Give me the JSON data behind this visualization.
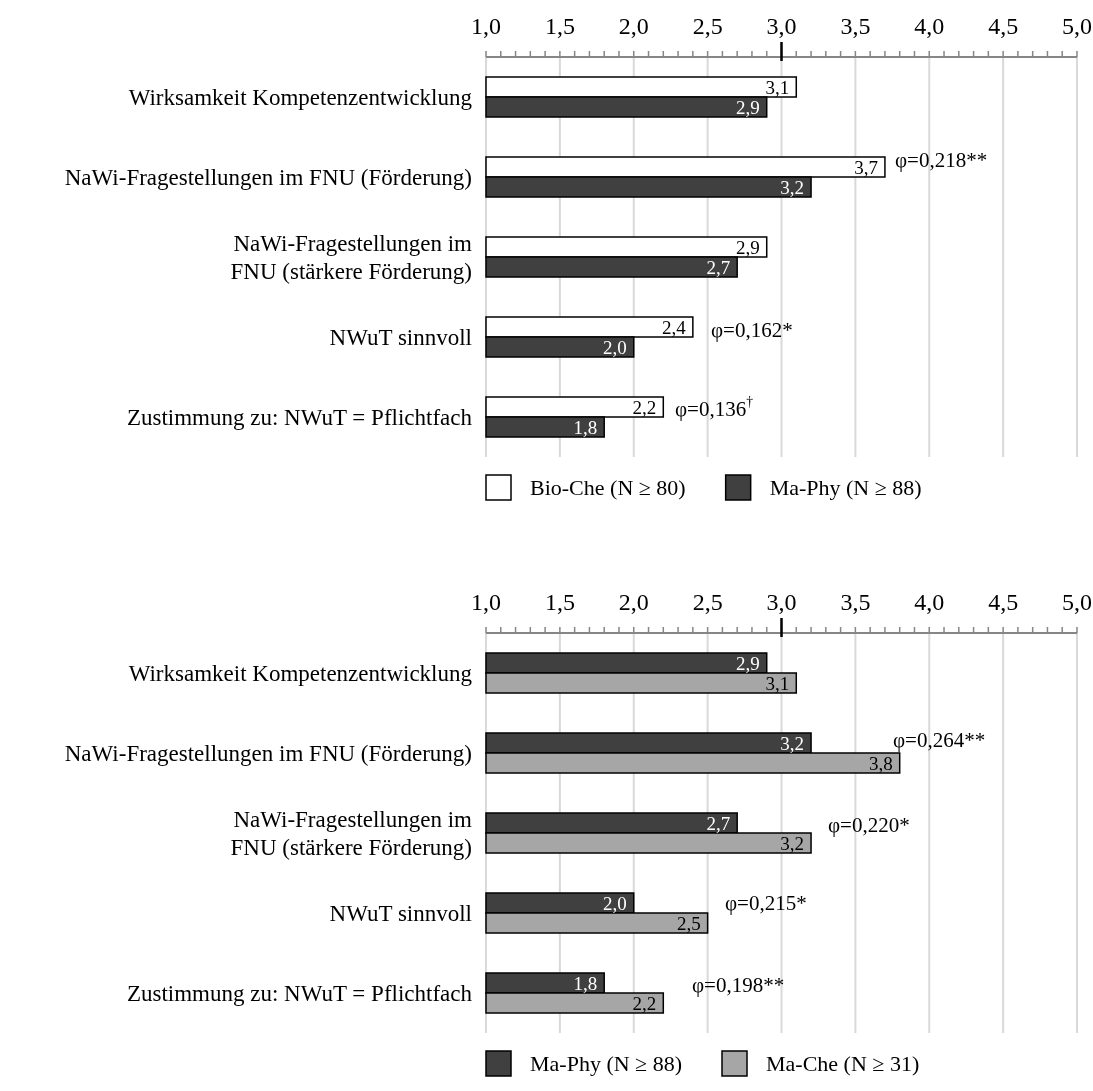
{
  "chart_data": [
    {
      "type": "bar",
      "orientation": "horizontal",
      "categories": [
        "Wirksamkeit Kompetenzentwicklung",
        "NaWi-Fragestellungen im FNU (Förderung)",
        "NaWi-Fragestellungen im FNU (stärkere Förderung)",
        "NWuT sinnvoll",
        "Zustimmung zu: NWuT = Pflichtfach"
      ],
      "series": [
        {
          "name": "Bio-Che (N ≥ 80)",
          "color": "#ffffff",
          "values": [
            3.1,
            3.7,
            2.9,
            2.4,
            2.2
          ],
          "value_labels": [
            "3,1",
            "3,7",
            "2,9",
            "2,4",
            "2,2"
          ]
        },
        {
          "name": "Ma-Phy (N ≥ 88)",
          "color": "#404040",
          "values": [
            2.9,
            3.2,
            2.7,
            2.0,
            1.8
          ],
          "value_labels": [
            "2,9",
            "3,2",
            "2,7",
            "2,0",
            "1,8"
          ]
        }
      ],
      "xlim": [
        1,
        5
      ],
      "xticks": [
        {
          "value": 1,
          "label": "1,0"
        },
        {
          "value": 1.1,
          "label": null
        },
        {
          "value": 1.2,
          "label": null
        },
        {
          "value": 1.3,
          "label": null
        },
        {
          "value": 1.4,
          "label": null
        },
        {
          "value": 1.5,
          "label": "1,5"
        },
        {
          "value": 1.6,
          "label": null
        },
        {
          "value": 1.7,
          "label": null
        },
        {
          "value": 1.8,
          "label": null
        },
        {
          "value": 1.9,
          "label": null
        },
        {
          "value": 2,
          "label": "2,0"
        },
        {
          "value": 2.1,
          "label": null
        },
        {
          "value": 2.2,
          "label": null
        },
        {
          "value": 2.3,
          "label": null
        },
        {
          "value": 2.4,
          "label": null
        },
        {
          "value": 2.5,
          "label": "2,5"
        },
        {
          "value": 2.6,
          "label": null
        },
        {
          "value": 2.7,
          "label": null
        },
        {
          "value": 2.8,
          "label": null
        },
        {
          "value": 2.9,
          "label": null
        },
        {
          "value": 3,
          "label": "3,0"
        },
        {
          "value": 3.1,
          "label": null
        },
        {
          "value": 3.2,
          "label": null
        },
        {
          "value": 3.3,
          "label": null
        },
        {
          "value": 3.4,
          "label": null
        },
        {
          "value": 3.5,
          "label": "3,5"
        },
        {
          "value": 3.6,
          "label": null
        },
        {
          "value": 3.7,
          "label": null
        },
        {
          "value": 3.8,
          "label": null
        },
        {
          "value": 3.9,
          "label": null
        },
        {
          "value": 4,
          "label": "4,0"
        },
        {
          "value": 4.1,
          "label": null
        },
        {
          "value": 4.2,
          "label": null
        },
        {
          "value": 4.3,
          "label": null
        },
        {
          "value": 4.4,
          "label": null
        },
        {
          "value": 4.5,
          "label": "4,5"
        },
        {
          "value": 4.6,
          "label": null
        },
        {
          "value": 4.7,
          "label": null
        },
        {
          "value": 4.8,
          "label": null
        },
        {
          "value": 4.9,
          "label": null
        },
        {
          "value": 5,
          "label": "5,0"
        }
      ],
      "grid": "x",
      "legend": "bottom",
      "annotations": [
        "φ=0,218**",
        "φ=0,162*",
        "φ=0,136$^{†}$"
      ]
    },
    {
      "type": "bar",
      "orientation": "horizontal",
      "categories": [
        "Wirksamkeit Kompetenzentwicklung",
        "NaWi-Fragestellungen im FNU (Förderung)",
        "NaWi-Fragestellungen im FNU (stärkere Förderung)",
        "NWuT sinnvoll",
        "Zustimmung zu: NWuT = Pflichtfach"
      ],
      "series": [
        {
          "name": "Ma-Phy (N ≥ 88)",
          "color": "#404040",
          "values": [
            2.9,
            3.2,
            2.7,
            2.0,
            1.8
          ],
          "value_labels": [
            "2,9",
            "3,2",
            "2,7",
            "2,0",
            "1,8"
          ]
        },
        {
          "name": "Ma-Che (N ≥ 31)",
          "color": "#a6a6a6",
          "values": [
            3.1,
            3.8,
            3.2,
            2.5,
            2.2
          ],
          "value_labels": [
            "3,1",
            "3,8",
            "3,2",
            "2,5",
            "2,2"
          ]
        }
      ],
      "xlim": [
        1,
        5
      ],
      "xticks": [
        {
          "value": 1,
          "label": "1,0"
        },
        {
          "value": 1.1,
          "label": null
        },
        {
          "value": 1.2,
          "label": null
        },
        {
          "value": 1.3,
          "label": null
        },
        {
          "value": 1.4,
          "label": null
        },
        {
          "value": 1.5,
          "label": "1,5"
        },
        {
          "value": 1.6,
          "label": null
        },
        {
          "value": 1.7,
          "label": null
        },
        {
          "value": 1.8,
          "label": null
        },
        {
          "value": 1.9,
          "label": null
        },
        {
          "value": 2,
          "label": "2,0"
        },
        {
          "value": 2.1,
          "label": null
        },
        {
          "value": 2.2,
          "label": null
        },
        {
          "value": 2.3,
          "label": null
        },
        {
          "value": 2.4,
          "label": null
        },
        {
          "value": 2.5,
          "label": "2,5"
        },
        {
          "value": 2.6,
          "label": null
        },
        {
          "value": 2.7,
          "label": null
        },
        {
          "value": 2.8,
          "label": null
        },
        {
          "value": 2.9,
          "label": null
        },
        {
          "value": 3,
          "label": "3,0"
        },
        {
          "value": 3.1,
          "label": null
        },
        {
          "value": 3.2,
          "label": null
        },
        {
          "value": 3.3,
          "label": null
        },
        {
          "value": 3.4,
          "label": null
        },
        {
          "value": 3.5,
          "label": "3,5"
        },
        {
          "value": 3.6,
          "label": null
        },
        {
          "value": 3.7,
          "label": null
        },
        {
          "value": 3.8,
          "label": null
        },
        {
          "value": 3.9,
          "label": null
        },
        {
          "value": 4,
          "label": "4,0"
        },
        {
          "value": 4.1,
          "label": null
        },
        {
          "value": 4.2,
          "label": null
        },
        {
          "value": 4.3,
          "label": null
        },
        {
          "value": 4.4,
          "label": null
        },
        {
          "value": 4.5,
          "label": "4,5"
        },
        {
          "value": 4.6,
          "label": null
        },
        {
          "value": 4.7,
          "label": null
        },
        {
          "value": 4.8,
          "label": null
        },
        {
          "value": 4.9,
          "label": null
        },
        {
          "value": 5,
          "label": "5,0"
        }
      ],
      "grid": "x",
      "legend": "bottom",
      "annotations": [
        "φ=0,264**",
        "φ=0,220*",
        "φ=0,215*",
        "φ=0,198**"
      ]
    }
  ]
}
